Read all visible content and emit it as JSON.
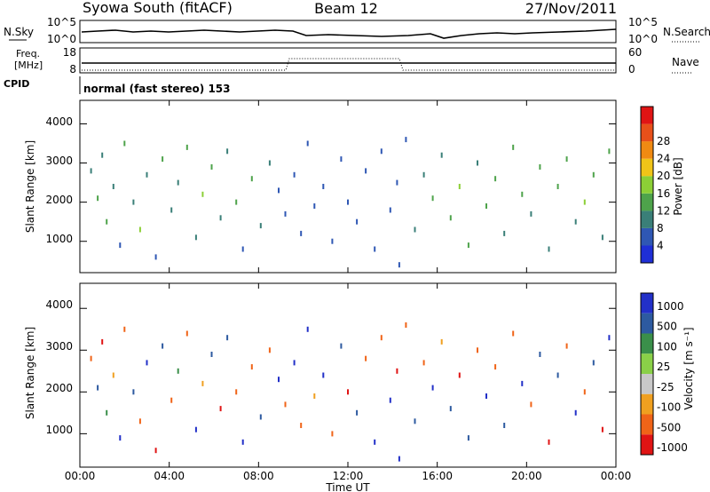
{
  "header": {
    "title": "Syowa South (fitACF)",
    "beam": "Beam 12",
    "date": "27/Nov/2011"
  },
  "noise_panel": {
    "left_label": "N.Sky",
    "right_label": "N.Search",
    "left_ticks": [
      "10^5",
      "10^0"
    ],
    "right_ticks": [
      "10^5",
      "10^0"
    ]
  },
  "freq_panel": {
    "left_label_line1": "Freq.",
    "left_label_line2": "[MHz]",
    "left_ticks": [
      "18",
      "8"
    ],
    "right_label": "Nave",
    "right_ticks": [
      "60",
      "0"
    ]
  },
  "cpid": {
    "label": "CPID",
    "text": "normal (fast stereo) 153"
  },
  "time_axis": {
    "label": "Time UT",
    "ticks": [
      "00:00",
      "04:00",
      "08:00",
      "12:00",
      "16:00",
      "20:00",
      "00:00"
    ]
  },
  "colors": {
    "power": [
      "#1f2fd6",
      "#2f57b4",
      "#3a7f78",
      "#4ea34b",
      "#8ccf36",
      "#f0c418",
      "#f08a12",
      "#e8501a",
      "#e01414"
    ],
    "velocity": [
      "#e01414",
      "#f06418",
      "#f0a020",
      "#c8c8c8",
      "#8ad048",
      "#3a8f4a",
      "#2d5aa0",
      "#2230c8"
    ]
  },
  "chart_data": [
    {
      "type": "scatter",
      "title": "Power",
      "xlabel": "Time UT",
      "ylabel": "Slant Range [km]",
      "x_ticks": [
        "00:00",
        "04:00",
        "08:00",
        "12:00",
        "16:00",
        "20:00",
        "00:00"
      ],
      "y_ticks": [
        1000,
        2000,
        3000,
        4000
      ],
      "ylim": [
        200,
        4600
      ],
      "xlim_hours": [
        0,
        24
      ],
      "colorbar": {
        "label": "Power [dB]",
        "ticks": [
          "4",
          "8",
          "12",
          "16",
          "20",
          "24",
          "28"
        ],
        "range": [
          0,
          32
        ]
      },
      "points": [
        [
          0.5,
          2800,
          10
        ],
        [
          0.8,
          2100,
          12
        ],
        [
          1.0,
          3200,
          8
        ],
        [
          1.2,
          1500,
          14
        ],
        [
          1.5,
          2400,
          10
        ],
        [
          1.8,
          900,
          6
        ],
        [
          2.0,
          3500,
          12
        ],
        [
          2.4,
          2000,
          8
        ],
        [
          2.7,
          1300,
          16
        ],
        [
          3.0,
          2700,
          10
        ],
        [
          3.4,
          600,
          6
        ],
        [
          3.7,
          3100,
          14
        ],
        [
          4.1,
          1800,
          10
        ],
        [
          4.4,
          2500,
          8
        ],
        [
          4.8,
          3400,
          12
        ],
        [
          5.2,
          1100,
          10
        ],
        [
          5.5,
          2200,
          16
        ],
        [
          5.9,
          2900,
          12
        ],
        [
          6.3,
          1600,
          8
        ],
        [
          6.6,
          3300,
          10
        ],
        [
          7.0,
          2000,
          14
        ],
        [
          7.3,
          800,
          6
        ],
        [
          7.7,
          2600,
          12
        ],
        [
          8.1,
          1400,
          10
        ],
        [
          8.5,
          3000,
          8
        ],
        [
          8.9,
          2300,
          6
        ],
        [
          9.2,
          1700,
          4
        ],
        [
          9.6,
          2700,
          6
        ],
        [
          9.9,
          1200,
          4
        ],
        [
          10.2,
          3500,
          6
        ],
        [
          10.5,
          1900,
          4
        ],
        [
          10.9,
          2400,
          4
        ],
        [
          11.3,
          1000,
          6
        ],
        [
          11.7,
          3100,
          4
        ],
        [
          12.0,
          2000,
          6
        ],
        [
          12.4,
          1500,
          4
        ],
        [
          12.8,
          2800,
          6
        ],
        [
          13.2,
          800,
          4
        ],
        [
          13.5,
          3300,
          4
        ],
        [
          13.9,
          1800,
          4
        ],
        [
          14.2,
          2500,
          6
        ],
        [
          14.3,
          400,
          4
        ],
        [
          14.6,
          3600,
          6
        ],
        [
          15.0,
          1300,
          8
        ],
        [
          15.4,
          2700,
          10
        ],
        [
          15.8,
          2100,
          12
        ],
        [
          16.2,
          3200,
          10
        ],
        [
          16.6,
          1600,
          14
        ],
        [
          17.0,
          2400,
          16
        ],
        [
          17.4,
          900,
          12
        ],
        [
          17.8,
          3000,
          10
        ],
        [
          18.2,
          1900,
          14
        ],
        [
          18.6,
          2600,
          12
        ],
        [
          19.0,
          1200,
          10
        ],
        [
          19.4,
          3400,
          12
        ],
        [
          19.8,
          2200,
          14
        ],
        [
          20.2,
          1700,
          10
        ],
        [
          20.6,
          2900,
          12
        ],
        [
          21.0,
          800,
          8
        ],
        [
          21.4,
          2400,
          14
        ],
        [
          21.8,
          3100,
          12
        ],
        [
          22.2,
          1500,
          10
        ],
        [
          22.6,
          2000,
          16
        ],
        [
          23.0,
          2700,
          12
        ],
        [
          23.4,
          1100,
          10
        ],
        [
          23.7,
          3300,
          14
        ]
      ]
    },
    {
      "type": "scatter",
      "title": "Velocity",
      "xlabel": "Time UT",
      "ylabel": "Slant Range [km]",
      "x_ticks": [
        "00:00",
        "04:00",
        "08:00",
        "12:00",
        "16:00",
        "20:00",
        "00:00"
      ],
      "y_ticks": [
        1000,
        2000,
        3000,
        4000
      ],
      "ylim": [
        200,
        4600
      ],
      "xlim_hours": [
        0,
        24
      ],
      "colorbar": {
        "label": "Velocity [m s⁻¹]",
        "ticks": [
          "1000",
          "500",
          "100",
          "25",
          "-25",
          "-100",
          "-500",
          "-1000"
        ]
      },
      "points": [
        [
          0.5,
          2800,
          -150
        ],
        [
          0.8,
          2100,
          300
        ],
        [
          1.0,
          3200,
          -600
        ],
        [
          1.2,
          1500,
          50
        ],
        [
          1.5,
          2400,
          -80
        ],
        [
          1.8,
          900,
          700
        ],
        [
          2.0,
          3500,
          -300
        ],
        [
          2.4,
          2000,
          200
        ],
        [
          2.7,
          1300,
          -120
        ],
        [
          3.0,
          2700,
          900
        ],
        [
          3.4,
          600,
          -700
        ],
        [
          3.7,
          3100,
          150
        ],
        [
          4.1,
          1800,
          -200
        ],
        [
          4.4,
          2500,
          40
        ],
        [
          4.8,
          3400,
          -450
        ],
        [
          5.2,
          1100,
          600
        ],
        [
          5.5,
          2200,
          -60
        ],
        [
          5.9,
          2900,
          350
        ],
        [
          6.3,
          1600,
          -800
        ],
        [
          6.6,
          3300,
          120
        ],
        [
          7.0,
          2000,
          -250
        ],
        [
          7.3,
          800,
          800
        ],
        [
          7.7,
          2600,
          -120
        ],
        [
          8.1,
          1400,
          250
        ],
        [
          8.5,
          3000,
          -350
        ],
        [
          8.9,
          2300,
          900
        ],
        [
          9.2,
          1700,
          -150
        ],
        [
          9.6,
          2700,
          600
        ],
        [
          9.9,
          1200,
          -500
        ],
        [
          10.2,
          3500,
          1000
        ],
        [
          10.5,
          1900,
          -80
        ],
        [
          10.9,
          2400,
          700
        ],
        [
          11.3,
          1000,
          -300
        ],
        [
          11.7,
          3100,
          400
        ],
        [
          12.0,
          2000,
          -700
        ],
        [
          12.4,
          1500,
          200
        ],
        [
          12.8,
          2800,
          -150
        ],
        [
          13.2,
          800,
          900
        ],
        [
          13.5,
          3300,
          -200
        ],
        [
          13.9,
          1800,
          500
        ],
        [
          14.2,
          2500,
          -900
        ],
        [
          14.3,
          400,
          1000
        ],
        [
          14.6,
          3600,
          -250
        ],
        [
          15.0,
          1300,
          120
        ],
        [
          15.4,
          2700,
          -400
        ],
        [
          15.8,
          2100,
          600
        ],
        [
          16.2,
          3200,
          -90
        ],
        [
          16.6,
          1600,
          300
        ],
        [
          17.0,
          2400,
          -700
        ],
        [
          17.4,
          900,
          150
        ],
        [
          17.8,
          3000,
          -200
        ],
        [
          18.2,
          1900,
          800
        ],
        [
          18.6,
          2600,
          -500
        ],
        [
          19.0,
          1200,
          250
        ],
        [
          19.4,
          3400,
          -120
        ],
        [
          19.8,
          2200,
          700
        ],
        [
          20.2,
          1700,
          -300
        ],
        [
          20.6,
          2900,
          400
        ],
        [
          21.0,
          800,
          -900
        ],
        [
          21.4,
          2400,
          200
        ],
        [
          21.8,
          3100,
          -150
        ],
        [
          22.2,
          1500,
          600
        ],
        [
          22.6,
          2000,
          -400
        ],
        [
          23.0,
          2700,
          300
        ],
        [
          23.4,
          1100,
          -700
        ],
        [
          23.7,
          3300,
          900
        ]
      ]
    }
  ]
}
